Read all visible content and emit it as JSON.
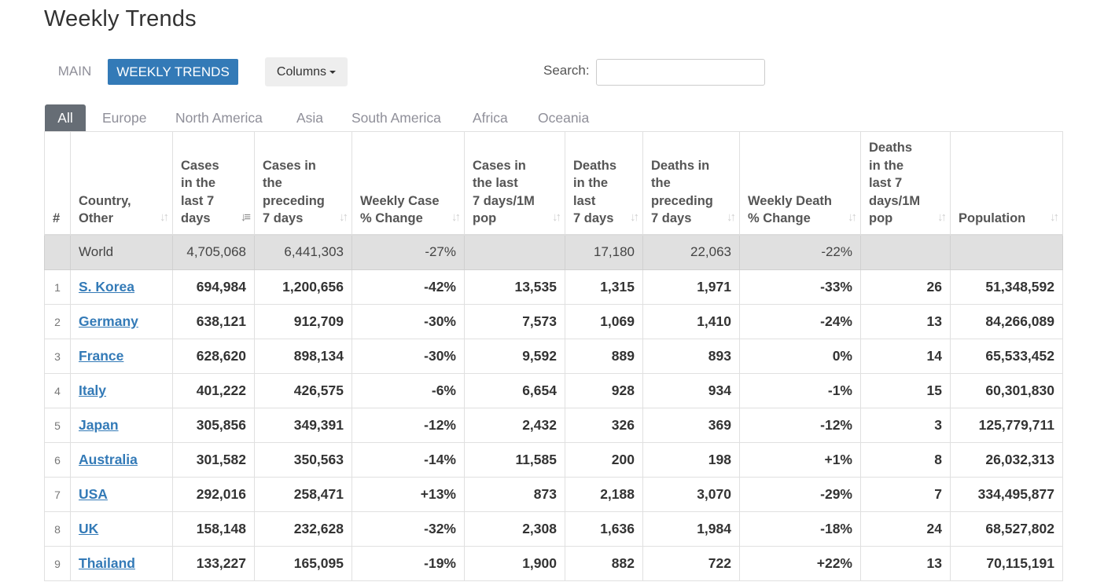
{
  "page": {
    "title": "Weekly Trends"
  },
  "nav": {
    "main_label": "MAIN",
    "weekly_label": "WEEKLY TRENDS",
    "columns_label": "Columns"
  },
  "search": {
    "label": "Search:",
    "value": ""
  },
  "regions": [
    "All",
    "Europe",
    "North America",
    "Asia",
    "South America",
    "Africa",
    "Oceania"
  ],
  "colors": {
    "accent": "#337ab7",
    "active_tab": "#666d75",
    "world_row": "#e0e0e0"
  },
  "table": {
    "headers": [
      "#",
      "Country,\nOther",
      "Cases\nin the\nlast 7\ndays",
      "Cases in\nthe\npreceding\n7 days",
      "Weekly Case\n% Change",
      "Cases in\nthe last\n7 days/1M\npop",
      "Deaths\nin the\nlast\n7 days",
      "Deaths in\nthe\npreceding\n7 days",
      "Weekly Death\n% Change",
      "Deaths\nin the\nlast 7\ndays/1M\npop",
      "Population"
    ],
    "world": [
      "",
      "World",
      "4,705,068",
      "6,441,303",
      "-27%",
      "",
      "17,180",
      "22,063",
      "-22%",
      "",
      ""
    ],
    "rows": [
      [
        "1",
        "S. Korea",
        "694,984",
        "1,200,656",
        "-42%",
        "13,535",
        "1,315",
        "1,971",
        "-33%",
        "26",
        "51,348,592"
      ],
      [
        "2",
        "Germany",
        "638,121",
        "912,709",
        "-30%",
        "7,573",
        "1,069",
        "1,410",
        "-24%",
        "13",
        "84,266,089"
      ],
      [
        "3",
        "France",
        "628,620",
        "898,134",
        "-30%",
        "9,592",
        "889",
        "893",
        "0%",
        "14",
        "65,533,452"
      ],
      [
        "4",
        "Italy",
        "401,222",
        "426,575",
        "-6%",
        "6,654",
        "928",
        "934",
        "-1%",
        "15",
        "60,301,830"
      ],
      [
        "5",
        "Japan",
        "305,856",
        "349,391",
        "-12%",
        "2,432",
        "326",
        "369",
        "-12%",
        "3",
        "125,779,711"
      ],
      [
        "6",
        "Australia",
        "301,582",
        "350,563",
        "-14%",
        "11,585",
        "200",
        "198",
        "+1%",
        "8",
        "26,032,313"
      ],
      [
        "7",
        "USA",
        "292,016",
        "258,471",
        "+13%",
        "873",
        "2,188",
        "3,070",
        "-29%",
        "7",
        "334,495,877"
      ],
      [
        "8",
        "UK",
        "158,148",
        "232,628",
        "-32%",
        "2,308",
        "1,636",
        "1,984",
        "-18%",
        "24",
        "68,527,802"
      ],
      [
        "9",
        "Thailand",
        "133,227",
        "165,095",
        "-19%",
        "1,900",
        "882",
        "722",
        "+22%",
        "13",
        "70,115,191"
      ]
    ]
  }
}
